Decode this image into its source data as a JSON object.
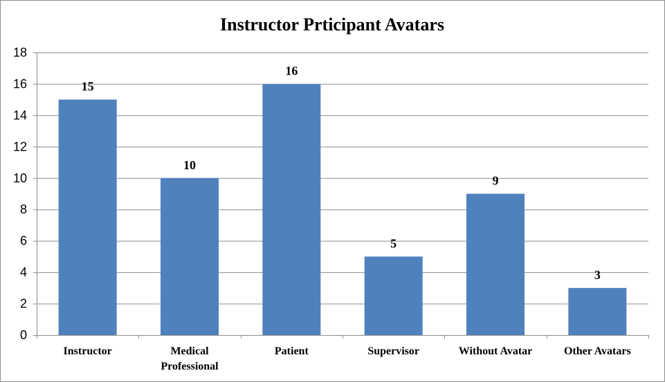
{
  "chart_data": {
    "type": "bar",
    "title": "Instructor  Prticipant Avatars",
    "xlabel": "",
    "ylabel": "",
    "categories": [
      [
        "Instructor"
      ],
      [
        "Medical",
        "Professional"
      ],
      [
        "Patient"
      ],
      [
        "Supervisor"
      ],
      [
        "Without Avatar"
      ],
      [
        "Other Avatars"
      ]
    ],
    "values": [
      15,
      10,
      16,
      5,
      9,
      3
    ],
    "ylim": [
      0,
      18
    ],
    "yticks": [
      0,
      2,
      4,
      6,
      8,
      10,
      12,
      14,
      16,
      18
    ],
    "grid": true,
    "legend": "none",
    "bar_color": "#4f81bd",
    "grid_color": "#8c8c8c",
    "axis_color": "#8c8c8c"
  }
}
